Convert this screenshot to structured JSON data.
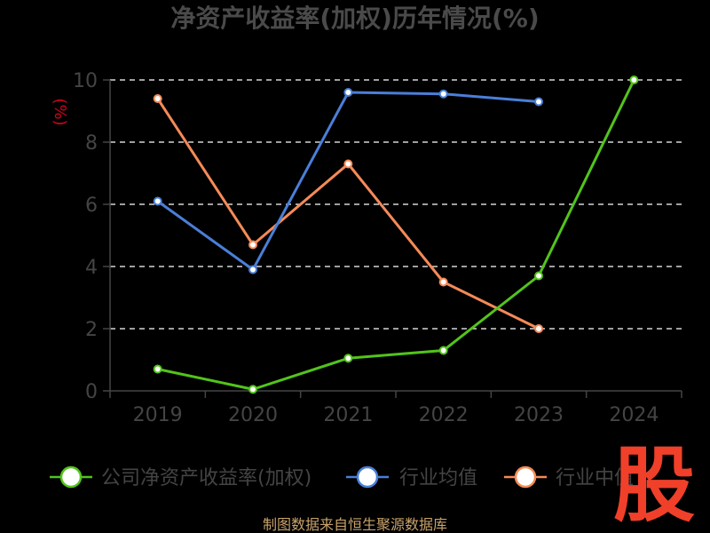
{
  "chart_data": {
    "type": "line",
    "title": "净资产收益率(加权)历年情况(%)",
    "ylabel": "(%)",
    "xlabel": "",
    "categories": [
      "2019",
      "2020",
      "2021",
      "2022",
      "2023",
      "2024"
    ],
    "yticks": [
      "0",
      "2",
      "4",
      "6",
      "8",
      "10"
    ],
    "ylim": [
      0,
      10
    ],
    "grid": true,
    "legend_position": "bottom",
    "series": [
      {
        "name": "公司净资产收益率(加权)",
        "color": "#52c41a",
        "values": [
          0.7,
          0.05,
          1.05,
          1.3,
          3.7,
          10.0
        ]
      },
      {
        "name": "行业均值",
        "color": "#4a7fd8",
        "values": [
          6.1,
          3.9,
          9.6,
          9.55,
          9.3,
          null
        ]
      },
      {
        "name": "行业中值",
        "color": "#f58a58",
        "values": [
          9.4,
          4.7,
          7.3,
          3.5,
          2.0,
          null
        ]
      }
    ]
  },
  "logo": {
    "text": "股"
  },
  "source": {
    "text": "制图数据来自恒生聚源数据库"
  }
}
